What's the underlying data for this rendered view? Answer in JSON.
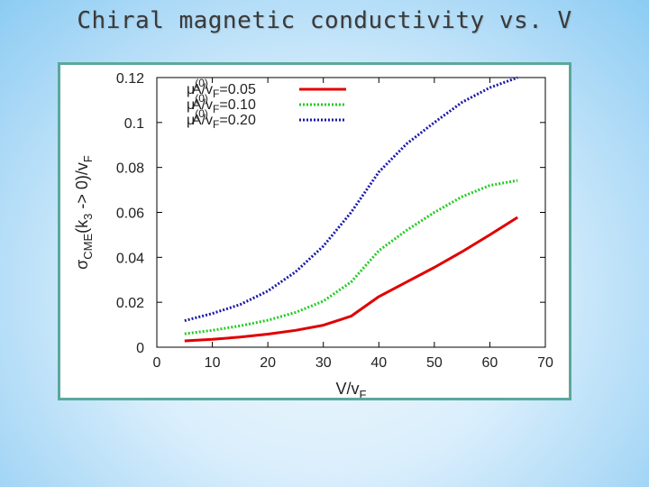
{
  "slide": {
    "title": "Chiral magnetic conductivity vs. V"
  },
  "chart_data": {
    "type": "line",
    "title": "",
    "xlabel": "V/vF",
    "ylabel": "σCME(k3 -> 0)/vF",
    "xlim": [
      0,
      70
    ],
    "ylim": [
      0,
      0.12
    ],
    "xticks": [
      0,
      10,
      20,
      30,
      40,
      50,
      60,
      70
    ],
    "yticks": [
      0,
      0.02,
      0.04,
      0.06,
      0.08,
      0.1,
      0.12
    ],
    "ytick_labels": [
      "0",
      "0.02",
      "0.04",
      "0.06",
      "0.08",
      "0.1",
      "0.12"
    ],
    "grid": false,
    "legend_position": "top-left",
    "series": [
      {
        "name": "μ(0)A/vF=0.05",
        "color": "#e00000",
        "style": "solid",
        "x": [
          5,
          10,
          15,
          20,
          25,
          30,
          35,
          40,
          45,
          50,
          55,
          60,
          65
        ],
        "y": [
          0.0028,
          0.0035,
          0.0045,
          0.0058,
          0.0075,
          0.0098,
          0.0138,
          0.0225,
          0.029,
          0.0355,
          0.0425,
          0.05,
          0.0578
        ]
      },
      {
        "name": "μ(0)A/vF=0.10",
        "color": "#22cc22",
        "style": "dotted",
        "x": [
          5,
          10,
          15,
          20,
          25,
          30,
          35,
          40,
          45,
          50,
          55,
          60,
          65
        ],
        "y": [
          0.006,
          0.0075,
          0.0095,
          0.012,
          0.0155,
          0.0205,
          0.029,
          0.043,
          0.052,
          0.06,
          0.067,
          0.072,
          0.0742
        ]
      },
      {
        "name": "μ(0)A/vF=0.20",
        "color": "#1a1aa8",
        "style": "dotted",
        "x": [
          5,
          10,
          15,
          20,
          25,
          30,
          35,
          40,
          45,
          50,
          55,
          60,
          65
        ],
        "y": [
          0.0118,
          0.015,
          0.019,
          0.025,
          0.0335,
          0.045,
          0.06,
          0.078,
          0.0905,
          0.1,
          0.109,
          0.1155,
          0.12
        ]
      }
    ]
  }
}
